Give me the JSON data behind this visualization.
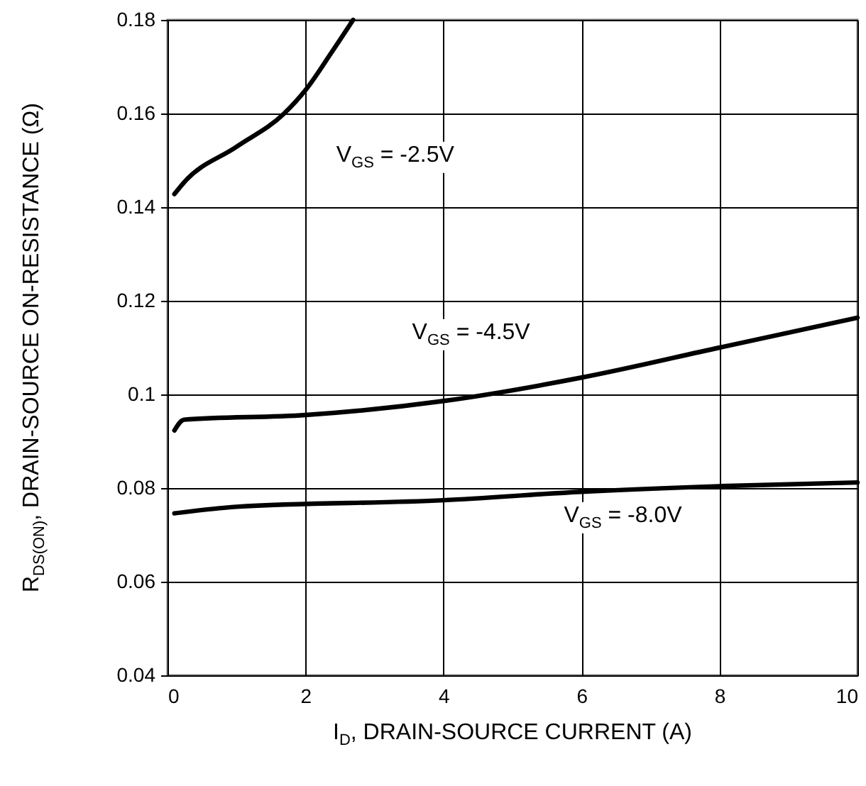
{
  "chart_data": {
    "type": "line",
    "xlabel": "I$_{D}$, DRAIN-SOURCE CURRENT (A)",
    "ylabel": "R$_{DS(ON)}$, DRAIN-SOURCE ON-RESISTANCE (Ω)",
    "xlim": [
      0,
      10
    ],
    "xticks": [
      0,
      2,
      4,
      6,
      8,
      10
    ],
    "ylim": [
      0.04,
      0.18
    ],
    "yticks": [
      0.04,
      0.06,
      0.08,
      0.1,
      0.12,
      0.14,
      0.16,
      0.18
    ],
    "grid": true,
    "marker": "none",
    "line_style": "solid",
    "series": [
      {
        "name": "V$_{GS}$ = -2.5V",
        "color": "#000000",
        "x": [
          0.1,
          0.24,
          1.0,
          1.69,
          2.0,
          2.38,
          2.69
        ],
        "values": [
          0.1428,
          0.1453,
          0.1529,
          0.16,
          0.165,
          0.1731,
          0.18
        ]
      },
      {
        "name": "V$_{GS}$ = -4.5V",
        "color": "#000000",
        "x": [
          0.1,
          0.24,
          2,
          4,
          6,
          8,
          10
        ],
        "values": [
          0.0923,
          0.0946,
          0.0956,
          0.0986,
          0.1036,
          0.11,
          0.1164
        ]
      },
      {
        "name": "V$_{GS}$ = -8.0V",
        "color": "#000000",
        "x": [
          0.1,
          1,
          4,
          6,
          8,
          10
        ],
        "values": [
          0.0746,
          0.076,
          0.0774,
          0.0792,
          0.0804,
          0.0812
        ]
      }
    ]
  }
}
